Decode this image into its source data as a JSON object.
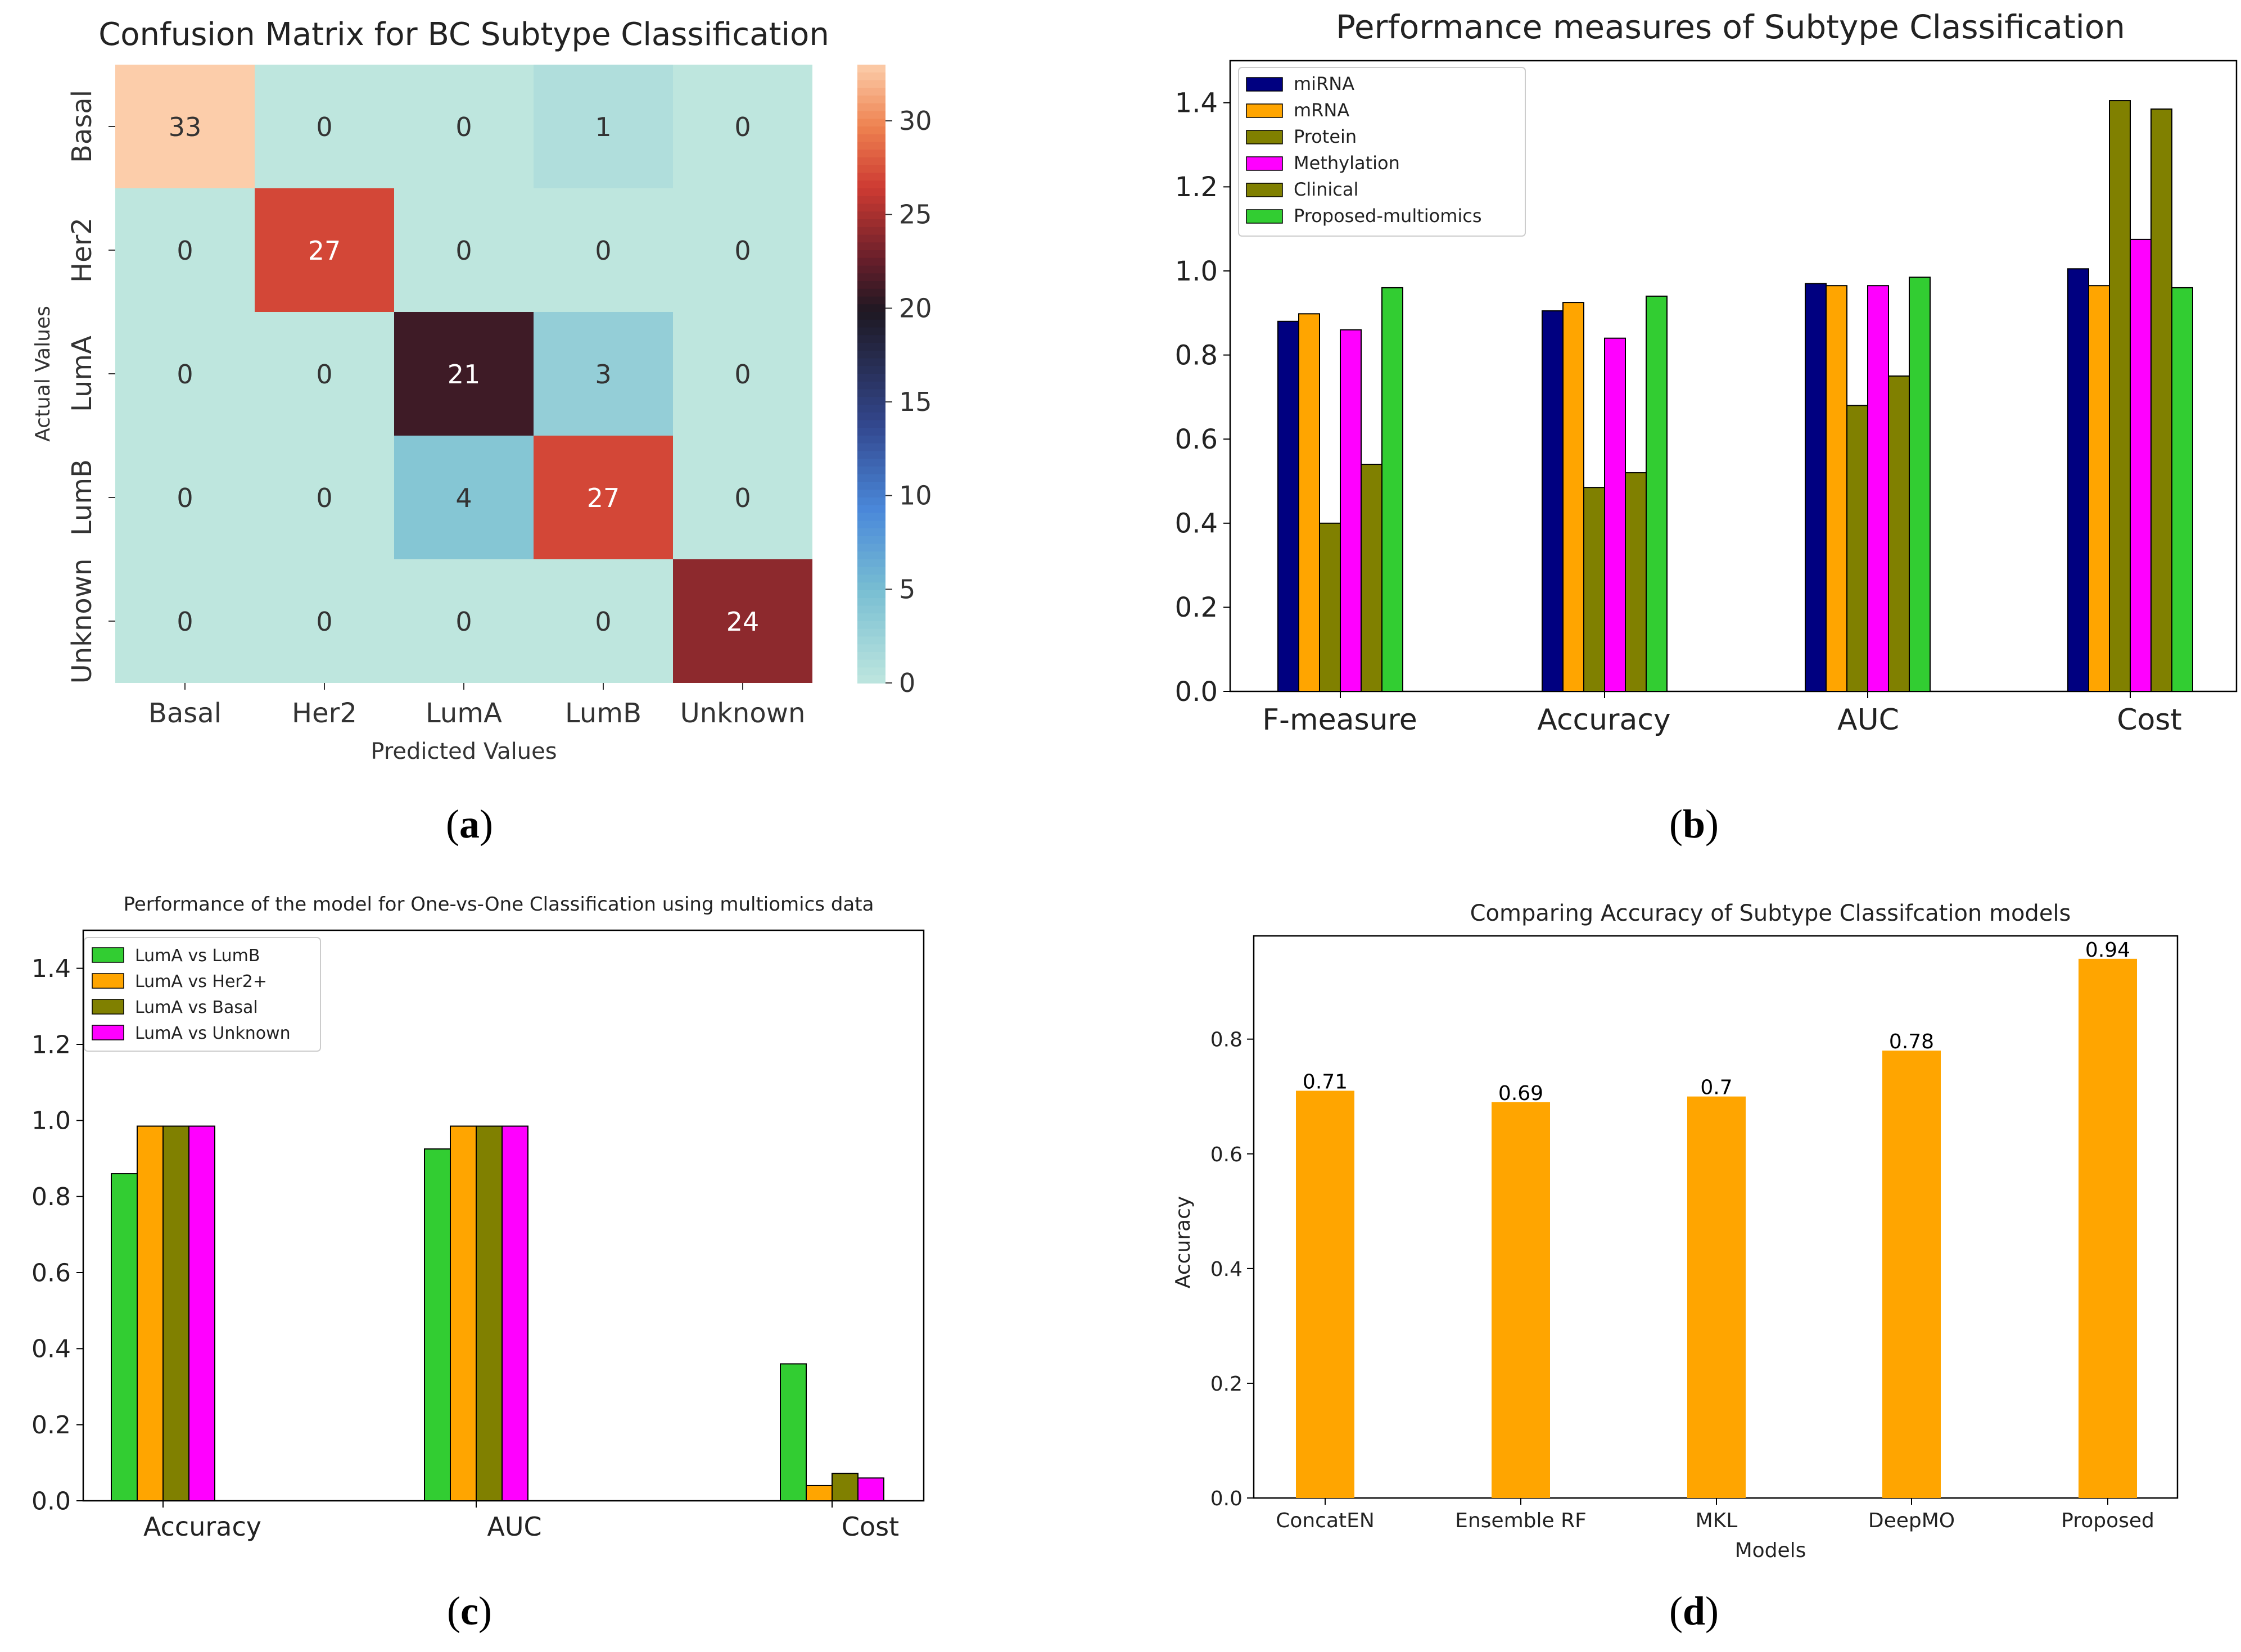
{
  "captions": {
    "a_open": "(",
    "a_letter": "a",
    "a_close": ")",
    "b_open": "(",
    "b_letter": "b",
    "b_close": ")",
    "c_open": "(",
    "c_letter": "c",
    "c_close": ")",
    "d_open": "(",
    "d_letter": "d",
    "d_close": ")"
  },
  "chart_data": [
    {
      "id": "a",
      "type": "heatmap",
      "title": "Confusion Matrix for BC Subtype Classification",
      "xlabel": "Predicted Values",
      "ylabel": "Actual Values",
      "x_categories": [
        "Basal",
        "Her2",
        "LumA",
        "LumB",
        "Unknown"
      ],
      "y_categories": [
        "Basal",
        "Her2",
        "LumA",
        "LumB",
        "Unknown"
      ],
      "values": [
        [
          33,
          0,
          0,
          1,
          0
        ],
        [
          0,
          27,
          0,
          0,
          0
        ],
        [
          0,
          0,
          21,
          3,
          0
        ],
        [
          0,
          0,
          4,
          27,
          0
        ],
        [
          0,
          0,
          0,
          0,
          24
        ]
      ],
      "colorbar": {
        "range": [
          0,
          33
        ],
        "ticks": [
          0,
          5,
          10,
          15,
          20,
          25,
          30
        ],
        "tick_labels": [
          "0",
          "5",
          "10",
          "15",
          "20",
          "25",
          "30"
        ]
      }
    },
    {
      "id": "b",
      "type": "bar",
      "title": "Performance measures of Subtype Classification",
      "categories": [
        "F-measure",
        "Accuracy",
        "AUC",
        "Cost"
      ],
      "series": [
        {
          "name": "miRNA",
          "color": "#000080",
          "values": [
            0.88,
            0.905,
            0.97,
            1.005
          ]
        },
        {
          "name": "mRNA",
          "color": "#FFA500",
          "values": [
            0.898,
            0.925,
            0.965,
            0.965
          ]
        },
        {
          "name": "Protein",
          "color": "#808000",
          "values": [
            0.4,
            0.485,
            0.68,
            1.405
          ]
        },
        {
          "name": "Methylation",
          "color": "#FF00FF",
          "values": [
            0.86,
            0.84,
            0.965,
            1.075
          ]
        },
        {
          "name": "Clinical",
          "color": "#808000",
          "values": [
            0.54,
            0.52,
            0.75,
            1.385
          ]
        },
        {
          "name": "Proposed-multiomics",
          "color": "#32CD32",
          "values": [
            0.96,
            0.94,
            0.985,
            0.96
          ]
        }
      ],
      "ylim": [
        0,
        1.5
      ],
      "yticks": [
        0.0,
        0.2,
        0.4,
        0.6,
        0.8,
        1.0,
        1.2,
        1.4
      ],
      "ytick_labels": [
        "0.0",
        "0.2",
        "0.4",
        "0.6",
        "0.8",
        "1.0",
        "1.2",
        "1.4"
      ],
      "legend": "top-left"
    },
    {
      "id": "c",
      "type": "bar",
      "title": "Performance of the model for One-vs-One Classification using multiomics data",
      "categories": [
        "Accuracy",
        "AUC",
        "Cost"
      ],
      "series": [
        {
          "name": "LumA vs LumB",
          "color": "#32CD32",
          "values": [
            0.86,
            0.925,
            0.36
          ]
        },
        {
          "name": "LumA vs Her2+",
          "color": "#FFA500",
          "values": [
            0.985,
            0.985,
            0.04
          ]
        },
        {
          "name": "LumA vs Basal",
          "color": "#808000",
          "values": [
            0.985,
            0.985,
            0.072
          ]
        },
        {
          "name": "LumA vs Unknown",
          "color": "#FF00FF",
          "values": [
            0.985,
            0.985,
            0.06
          ]
        }
      ],
      "ylim": [
        0,
        1.5
      ],
      "yticks": [
        0.0,
        0.2,
        0.4,
        0.6,
        0.8,
        1.0,
        1.2,
        1.4
      ],
      "ytick_labels": [
        "0.0",
        "0.2",
        "0.4",
        "0.6",
        "0.8",
        "1.0",
        "1.2",
        "1.4"
      ],
      "legend": "top-left"
    },
    {
      "id": "d",
      "type": "bar",
      "title": "Comparing Accuracy of Subtype Classifcation models",
      "xlabel": "Models",
      "ylabel": "Accuracy",
      "categories": [
        "ConcatEN",
        "Ensemble RF",
        "MKL",
        "DeepMO",
        "Proposed"
      ],
      "values": [
        0.71,
        0.69,
        0.7,
        0.78,
        0.94
      ],
      "value_labels": [
        "0.71",
        "0.69",
        "0.7",
        "0.78",
        "0.94"
      ],
      "color": "#FFA500",
      "ylim": [
        0,
        0.98
      ],
      "yticks": [
        0.0,
        0.2,
        0.4,
        0.6,
        0.8
      ],
      "ytick_labels": [
        "0.0",
        "0.2",
        "0.4",
        "0.6",
        "0.8"
      ]
    }
  ]
}
